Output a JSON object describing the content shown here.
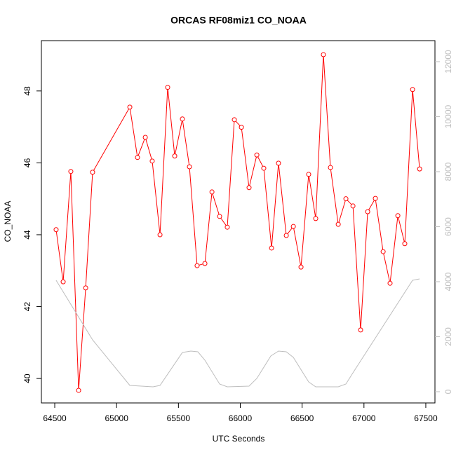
{
  "chart_data": {
    "type": "line",
    "title": "ORCAS RF08miz1 CO_NOAA",
    "xlabel": "UTC Seconds",
    "ylabel": "CO_NOAA",
    "xlim": [
      64392,
      67574
    ],
    "ylim": [
      39.32,
      49.4
    ],
    "y2lim": [
      -408,
      12764
    ],
    "xticks": [
      64500,
      65000,
      65500,
      66000,
      66500,
      67000,
      67500
    ],
    "yticks": [
      40,
      42,
      44,
      46,
      48
    ],
    "y2ticks": [
      0,
      2000,
      4000,
      6000,
      8000,
      10000,
      12000
    ],
    "series": [
      {
        "color": "#ff0000",
        "marker": "circle",
        "x": [
          64511,
          64568,
          64630,
          64693,
          64750,
          64806,
          65107,
          65169,
          65232,
          65288,
          65351,
          65413,
          65470,
          65532,
          65589,
          65651,
          65714,
          65771,
          65833,
          65895,
          65952,
          66009,
          66071,
          66134,
          66190,
          66253,
          66309,
          66372,
          66429,
          66491,
          66553,
          66610,
          66672,
          66729,
          66792,
          66854,
          66911,
          66973,
          67030,
          67092,
          67155,
          67211,
          67274,
          67330,
          67393,
          67450
        ],
        "values": [
          44.14,
          42.69,
          45.76,
          39.67,
          42.52,
          45.74,
          47.55,
          46.15,
          46.71,
          46.05,
          44.0,
          48.1,
          46.19,
          47.22,
          45.89,
          43.14,
          43.2,
          45.19,
          44.51,
          44.21,
          47.2,
          46.99,
          45.31,
          46.22,
          45.85,
          43.63,
          45.99,
          43.98,
          44.23,
          43.1,
          45.68,
          44.45,
          49.01,
          45.87,
          44.29,
          45.0,
          44.8,
          41.35,
          44.64,
          45.01,
          43.53,
          42.65,
          44.53,
          43.75,
          48.04,
          45.83
        ]
      },
      {
        "color": "#bebebe",
        "axis": "y2",
        "x": [
          64511,
          64806,
          65107,
          65294,
          65351,
          65532,
          65600,
          65657,
          65714,
          65833,
          65895,
          66071,
          66134,
          66247,
          66309,
          66372,
          66429,
          66553,
          66610,
          66792,
          66854,
          66911,
          67393,
          67450
        ],
        "values": [
          4050,
          1885,
          229,
          178,
          229,
          1427,
          1478,
          1452,
          1146,
          280,
          178,
          204,
          484,
          1299,
          1478,
          1452,
          1248,
          357,
          178,
          178,
          280,
          688,
          4051,
          4102
        ]
      }
    ]
  }
}
